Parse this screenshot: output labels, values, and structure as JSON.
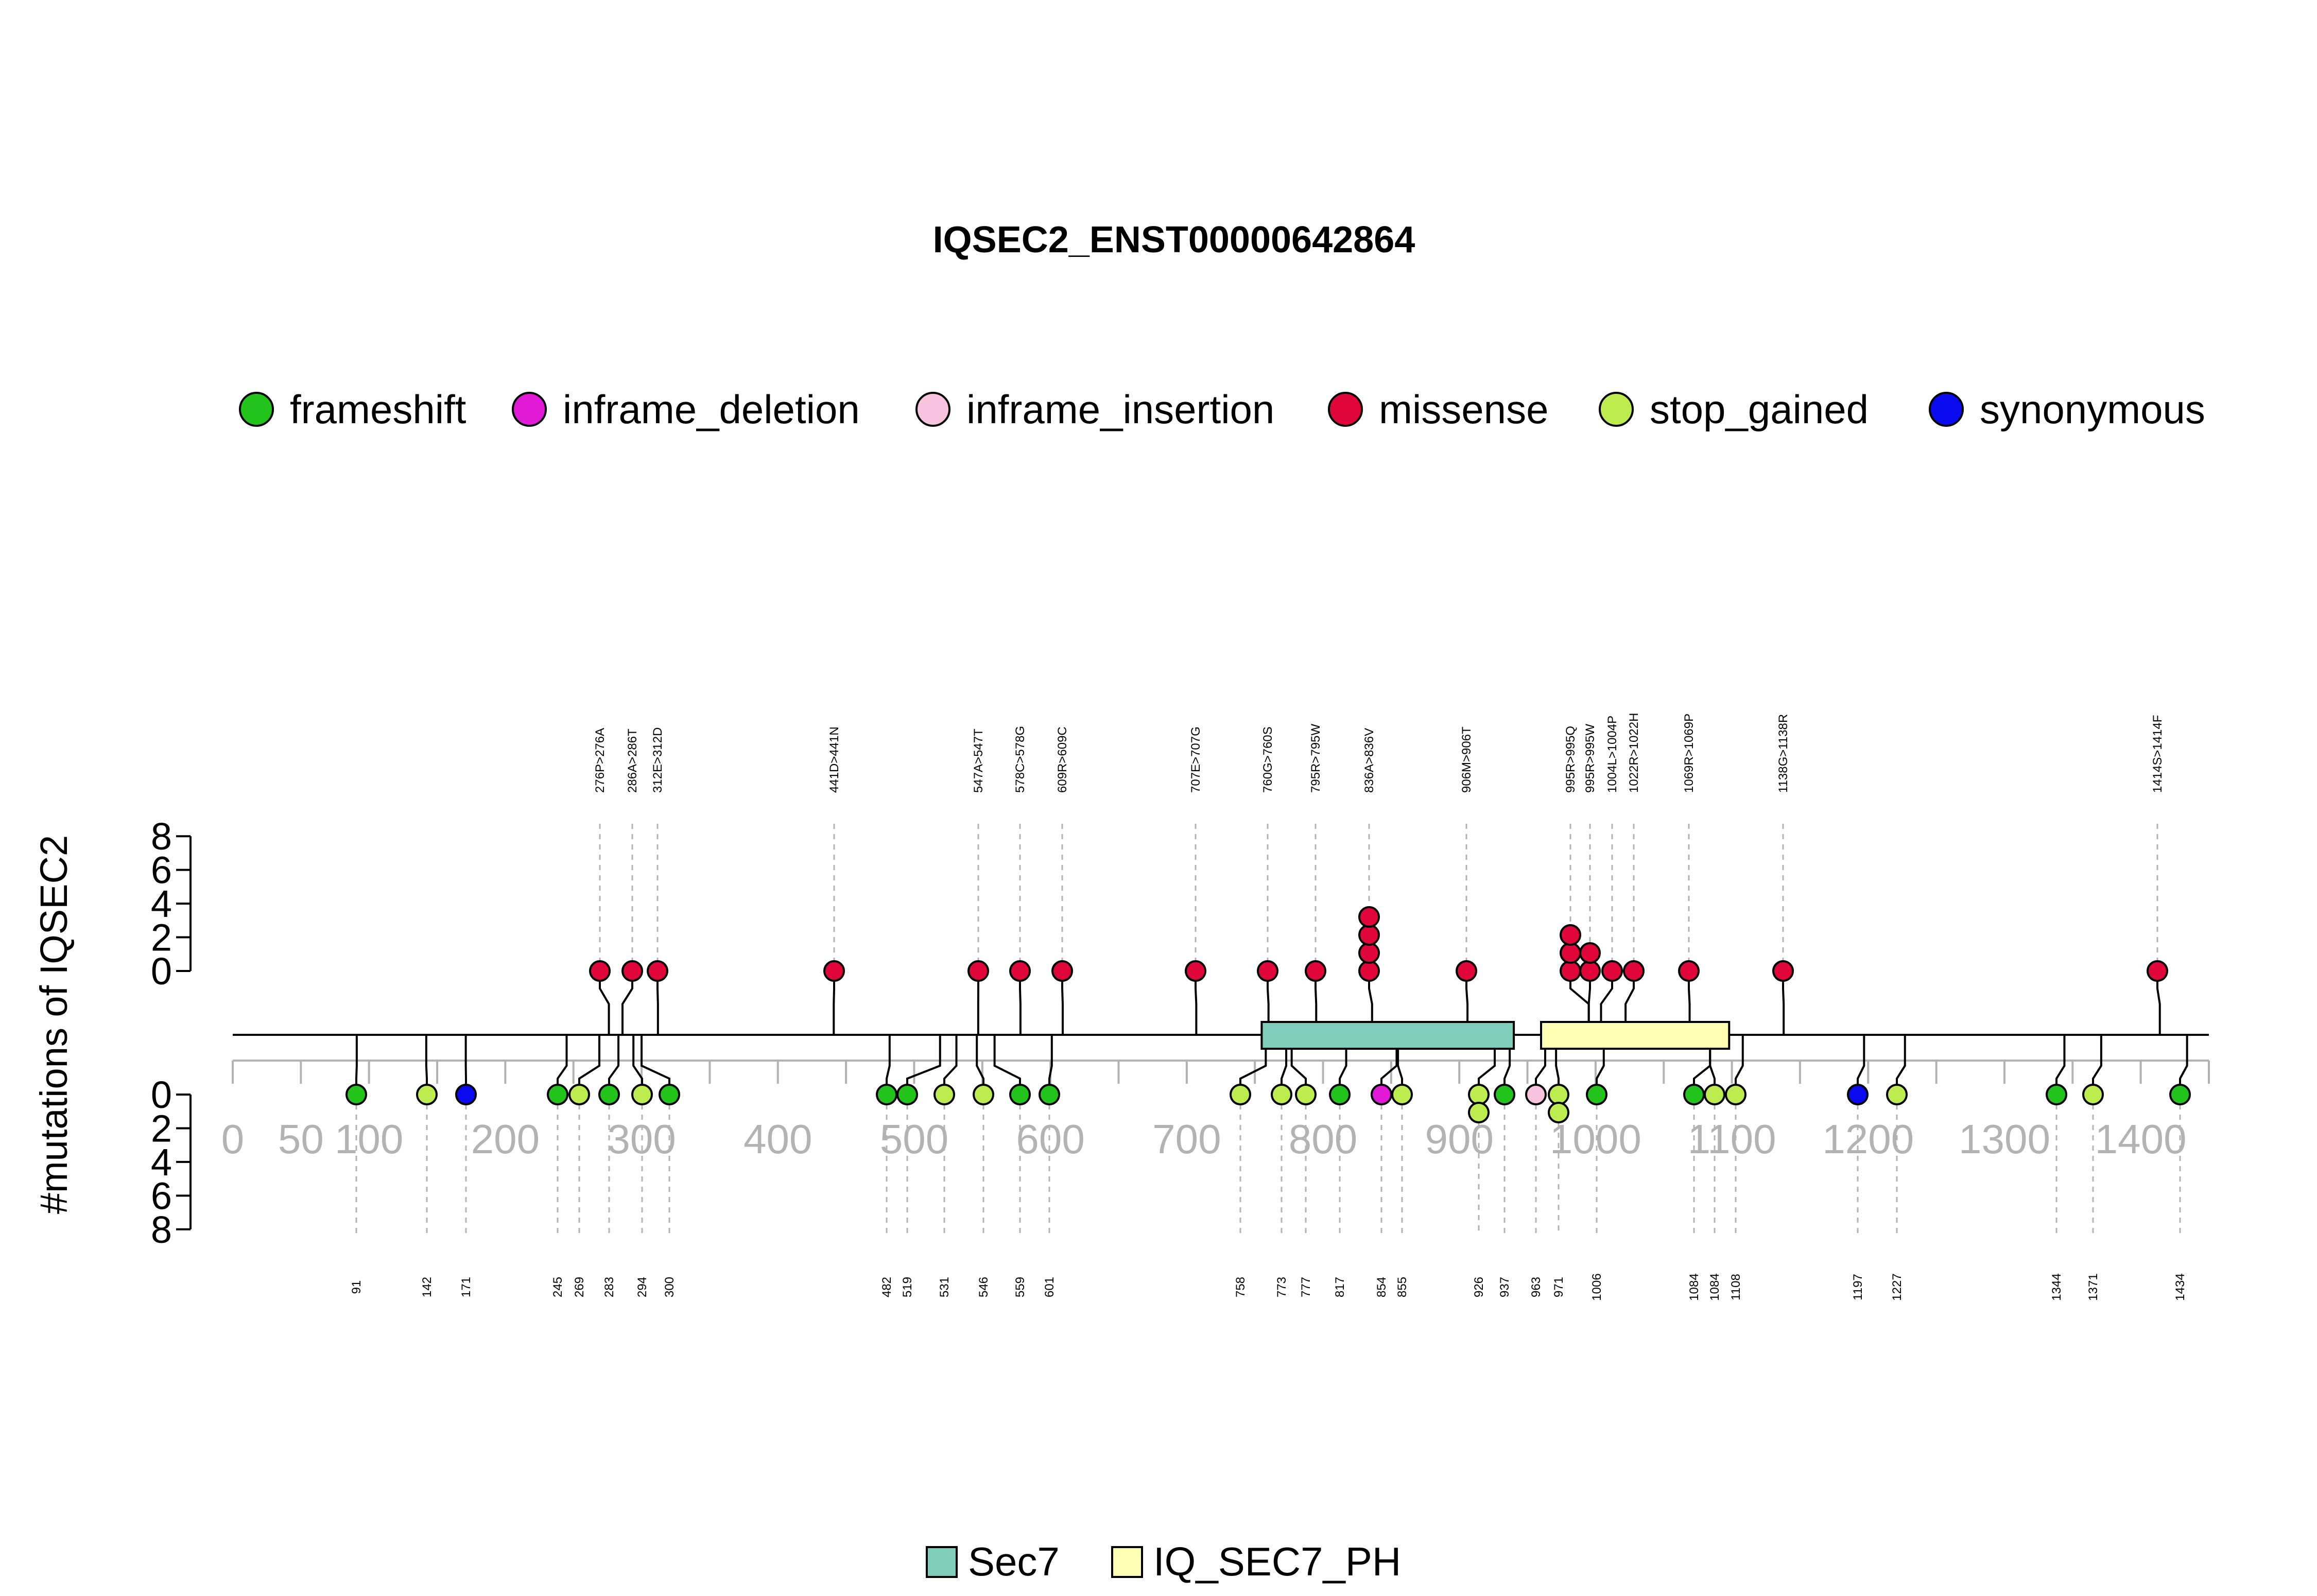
{
  "chart_data": {
    "type": "lollipop",
    "title": "IQSEC2_ENST00000642864",
    "ylabel": "#mutations of IQSEC2",
    "xlim": [
      0,
      1450
    ],
    "x_ticks": [
      0,
      50,
      100,
      200,
      300,
      400,
      500,
      600,
      700,
      800,
      900,
      1000,
      1100,
      1200,
      1300,
      1400
    ],
    "y_ticks_upper": [
      0,
      2,
      4,
      6,
      8
    ],
    "y_ticks_lower": [
      0,
      2,
      4,
      6,
      8
    ],
    "legend": [
      {
        "name": "frameshift",
        "color": "#22c31a"
      },
      {
        "name": "inframe_deletion",
        "color": "#e01ad6"
      },
      {
        "name": "inframe_insertion",
        "color": "#f8c3df"
      },
      {
        "name": "missense",
        "color": "#e0063a"
      },
      {
        "name": "stop_gained",
        "color": "#bcec4d"
      },
      {
        "name": "synonymous",
        "color": "#0a0af0"
      }
    ],
    "domains": [
      {
        "name": "Sec7",
        "start": 755,
        "end": 940,
        "color": "#7fcdbb"
      },
      {
        "name": "IQ_SEC7_PH",
        "start": 960,
        "end": 1098,
        "color": "#ffffb3"
      }
    ],
    "upper_mutations": [
      {
        "label": "276P>276A",
        "pos": 276,
        "count": 1,
        "type": "missense"
      },
      {
        "label": "286A>286T",
        "pos": 286,
        "count": 1,
        "type": "missense"
      },
      {
        "label": "312E>312D",
        "pos": 312,
        "count": 1,
        "type": "missense"
      },
      {
        "label": "441D>441N",
        "pos": 441,
        "count": 1,
        "type": "missense"
      },
      {
        "label": "547A>547T",
        "pos": 547,
        "count": 1,
        "type": "missense"
      },
      {
        "label": "578C>578G",
        "pos": 578,
        "count": 1,
        "type": "missense"
      },
      {
        "label": "609R>609C",
        "pos": 609,
        "count": 1,
        "type": "missense"
      },
      {
        "label": "707E>707G",
        "pos": 707,
        "count": 1,
        "type": "missense"
      },
      {
        "label": "760G>760S",
        "pos": 760,
        "count": 1,
        "type": "missense"
      },
      {
        "label": "795R>795W",
        "pos": 795,
        "count": 1,
        "type": "missense"
      },
      {
        "label": "836A>836V",
        "pos": 836,
        "count": 4,
        "type": "missense"
      },
      {
        "label": "906M>906T",
        "pos": 906,
        "count": 1,
        "type": "missense"
      },
      {
        "label": "995R>995Q",
        "pos": 995,
        "count": 3,
        "type": "missense"
      },
      {
        "label": "995R>995W",
        "pos": 995,
        "count": 2,
        "type": "missense"
      },
      {
        "label": "1004L>1004P",
        "pos": 1004,
        "count": 1,
        "type": "missense"
      },
      {
        "label": "1022R>1022H",
        "pos": 1022,
        "count": 1,
        "type": "missense"
      },
      {
        "label": "1069R>1069P",
        "pos": 1069,
        "count": 1,
        "type": "missense"
      },
      {
        "label": "1138G>1138R",
        "pos": 1138,
        "count": 1,
        "type": "missense"
      },
      {
        "label": "1414S>1414F",
        "pos": 1414,
        "count": 1,
        "type": "missense"
      }
    ],
    "lower_mutations": [
      {
        "label": "91",
        "pos": 91,
        "count": 1,
        "type": "frameshift"
      },
      {
        "label": "142",
        "pos": 142,
        "count": 1,
        "type": "stop_gained"
      },
      {
        "label": "171",
        "pos": 171,
        "count": 1,
        "type": "synonymous"
      },
      {
        "label": "245",
        "pos": 245,
        "count": 1,
        "type": "frameshift"
      },
      {
        "label": "269",
        "pos": 269,
        "count": 1,
        "type": "stop_gained"
      },
      {
        "label": "283",
        "pos": 283,
        "count": 1,
        "type": "frameshift"
      },
      {
        "label": "294",
        "pos": 294,
        "count": 1,
        "type": "stop_gained"
      },
      {
        "label": "300",
        "pos": 300,
        "count": 1,
        "type": "frameshift"
      },
      {
        "label": "482",
        "pos": 482,
        "count": 1,
        "type": "frameshift"
      },
      {
        "label": "519",
        "pos": 519,
        "count": 1,
        "type": "frameshift"
      },
      {
        "label": "531",
        "pos": 531,
        "count": 1,
        "type": "stop_gained"
      },
      {
        "label": "546",
        "pos": 546,
        "count": 1,
        "type": "stop_gained"
      },
      {
        "label": "559",
        "pos": 559,
        "count": 1,
        "type": "frameshift"
      },
      {
        "label": "601",
        "pos": 601,
        "count": 1,
        "type": "frameshift"
      },
      {
        "label": "758",
        "pos": 758,
        "count": 1,
        "type": "stop_gained"
      },
      {
        "label": "773",
        "pos": 773,
        "count": 1,
        "type": "stop_gained"
      },
      {
        "label": "777",
        "pos": 777,
        "count": 1,
        "type": "stop_gained"
      },
      {
        "label": "817",
        "pos": 817,
        "count": 1,
        "type": "frameshift"
      },
      {
        "label": "854",
        "pos": 854,
        "count": 1,
        "type": "inframe_deletion"
      },
      {
        "label": "855",
        "pos": 855,
        "count": 1,
        "type": "stop_gained"
      },
      {
        "label": "926",
        "pos": 926,
        "count": 2,
        "type": "stop_gained"
      },
      {
        "label": "937",
        "pos": 937,
        "count": 1,
        "type": "frameshift"
      },
      {
        "label": "963",
        "pos": 963,
        "count": 1,
        "type": "inframe_insertion"
      },
      {
        "label": "971",
        "pos": 971,
        "count": 2,
        "type": "stop_gained"
      },
      {
        "label": "1006",
        "pos": 1006,
        "count": 1,
        "type": "frameshift"
      },
      {
        "label": "1084",
        "pos": 1084,
        "count": 1,
        "type": "frameshift"
      },
      {
        "label": "1084",
        "pos": 1084,
        "count": 1,
        "type": "stop_gained"
      },
      {
        "label": "1108",
        "pos": 1108,
        "count": 1,
        "type": "stop_gained"
      },
      {
        "label": "1197",
        "pos": 1197,
        "count": 1,
        "type": "synonymous"
      },
      {
        "label": "1227",
        "pos": 1227,
        "count": 1,
        "type": "stop_gained"
      },
      {
        "label": "1344",
        "pos": 1344,
        "count": 1,
        "type": "frameshift"
      },
      {
        "label": "1371",
        "pos": 1371,
        "count": 1,
        "type": "stop_gained"
      },
      {
        "label": "1434",
        "pos": 1434,
        "count": 1,
        "type": "frameshift"
      }
    ]
  }
}
